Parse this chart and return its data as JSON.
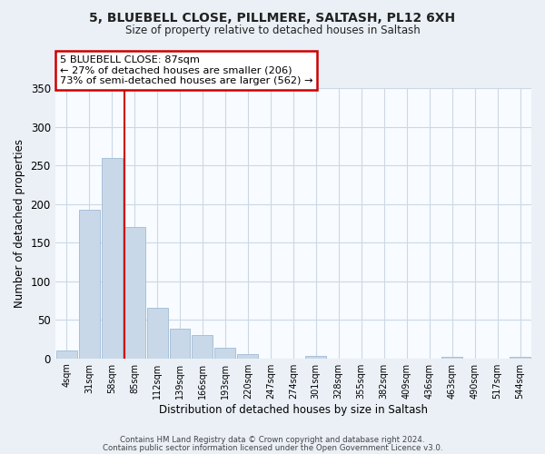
{
  "title": "5, BLUEBELL CLOSE, PILLMERE, SALTASH, PL12 6XH",
  "subtitle": "Size of property relative to detached houses in Saltash",
  "xlabel": "Distribution of detached houses by size in Saltash",
  "ylabel": "Number of detached properties",
  "bar_labels": [
    "4sqm",
    "31sqm",
    "58sqm",
    "85sqm",
    "112sqm",
    "139sqm",
    "166sqm",
    "193sqm",
    "220sqm",
    "247sqm",
    "274sqm",
    "301sqm",
    "328sqm",
    "355sqm",
    "382sqm",
    "409sqm",
    "436sqm",
    "463sqm",
    "490sqm",
    "517sqm",
    "544sqm"
  ],
  "bar_values": [
    10,
    192,
    260,
    170,
    66,
    38,
    30,
    14,
    6,
    0,
    0,
    3,
    0,
    0,
    0,
    0,
    0,
    2,
    0,
    0,
    2
  ],
  "bar_color": "#c8d8e8",
  "bar_edge_color": "#a8c0d8",
  "vline_index": 3,
  "vline_color": "#cc0000",
  "ylim": [
    0,
    350
  ],
  "yticks": [
    0,
    50,
    100,
    150,
    200,
    250,
    300,
    350
  ],
  "annotation_title": "5 BLUEBELL CLOSE: 87sqm",
  "annotation_line1": "← 27% of detached houses are smaller (206)",
  "annotation_line2": "73% of semi-detached houses are larger (562) →",
  "annotation_box_color": "#ffffff",
  "annotation_box_edge": "#cc0000",
  "footer_line1": "Contains HM Land Registry data © Crown copyright and database right 2024.",
  "footer_line2": "Contains public sector information licensed under the Open Government Licence v3.0.",
  "background_color": "#eaf0f6",
  "plot_bg_color": "#f8fbff",
  "grid_color": "#ccd8e4"
}
